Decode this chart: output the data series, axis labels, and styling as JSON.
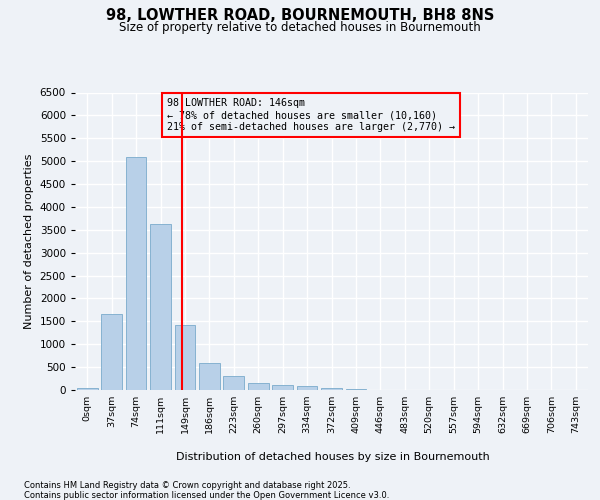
{
  "title": "98, LOWTHER ROAD, BOURNEMOUTH, BH8 8NS",
  "subtitle": "Size of property relative to detached houses in Bournemouth",
  "xlabel": "Distribution of detached houses by size in Bournemouth",
  "ylabel": "Number of detached properties",
  "bin_labels": [
    "0sqm",
    "37sqm",
    "74sqm",
    "111sqm",
    "149sqm",
    "186sqm",
    "223sqm",
    "260sqm",
    "297sqm",
    "334sqm",
    "372sqm",
    "409sqm",
    "446sqm",
    "483sqm",
    "520sqm",
    "557sqm",
    "594sqm",
    "632sqm",
    "669sqm",
    "706sqm",
    "743sqm"
  ],
  "bar_values": [
    50,
    1650,
    5100,
    3620,
    1420,
    590,
    310,
    150,
    120,
    80,
    35,
    15,
    10,
    5,
    3,
    2,
    1,
    1,
    1,
    1,
    1
  ],
  "bar_color": "#b8d0e8",
  "bar_edge_color": "#7aaBcc",
  "vline_x": 3.87,
  "vline_color": "red",
  "annotation_title": "98 LOWTHER ROAD: 146sqm",
  "annotation_line1": "← 78% of detached houses are smaller (10,160)",
  "annotation_line2": "21% of semi-detached houses are larger (2,770) →",
  "annotation_box_color": "red",
  "ylim": [
    0,
    6500
  ],
  "yticks": [
    0,
    500,
    1000,
    1500,
    2000,
    2500,
    3000,
    3500,
    4000,
    4500,
    5000,
    5500,
    6000,
    6500
  ],
  "footer_line1": "Contains HM Land Registry data © Crown copyright and database right 2025.",
  "footer_line2": "Contains public sector information licensed under the Open Government Licence v3.0.",
  "bg_color": "#eef2f7",
  "grid_color": "#ffffff"
}
